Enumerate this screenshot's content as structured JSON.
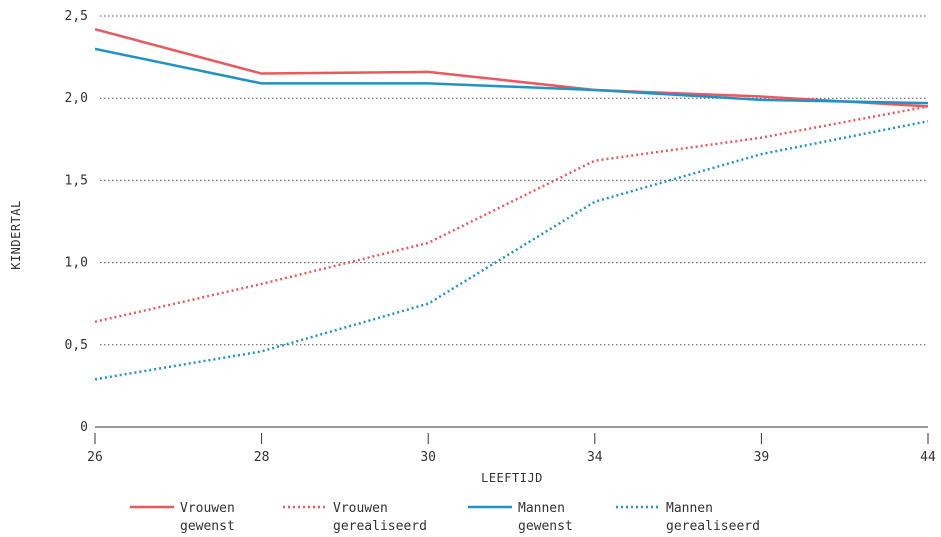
{
  "chart_data": {
    "type": "line",
    "title": "",
    "xlabel": "LEEFTIJD",
    "ylabel": "KINDERTAL",
    "categories": [
      "26",
      "28",
      "30",
      "34",
      "39",
      "44"
    ],
    "ylim": [
      0,
      2.5
    ],
    "yticks": [
      "0",
      "0,5",
      "1,0",
      "1,5",
      "2,0",
      "2,5"
    ],
    "grid": true,
    "legend_position": "bottom",
    "series": [
      {
        "name": "Vrouwen gewenst",
        "legend_lines": [
          "Vrouwen",
          "gewenst"
        ],
        "color": "#e85a5f",
        "style": "solid",
        "values": [
          2.42,
          2.15,
          2.16,
          2.05,
          2.01,
          1.95
        ]
      },
      {
        "name": "Vrouwen gerealiseerd",
        "legend_lines": [
          "Vrouwen",
          "gerealiseerd"
        ],
        "color": "#e85a5f",
        "style": "dotted",
        "values": [
          0.64,
          0.87,
          1.12,
          1.62,
          1.76,
          1.95
        ]
      },
      {
        "name": "Mannen gewenst",
        "legend_lines": [
          "Mannen",
          "gewenst"
        ],
        "color": "#1f93c4",
        "style": "solid",
        "values": [
          2.3,
          2.09,
          2.09,
          2.05,
          1.99,
          1.97
        ]
      },
      {
        "name": "Mannen gerealiseerd",
        "legend_lines": [
          "Mannen",
          "gerealiseerd"
        ],
        "color": "#1f93c4",
        "style": "dotted",
        "values": [
          0.29,
          0.46,
          0.75,
          1.37,
          1.66,
          1.86
        ]
      }
    ]
  }
}
